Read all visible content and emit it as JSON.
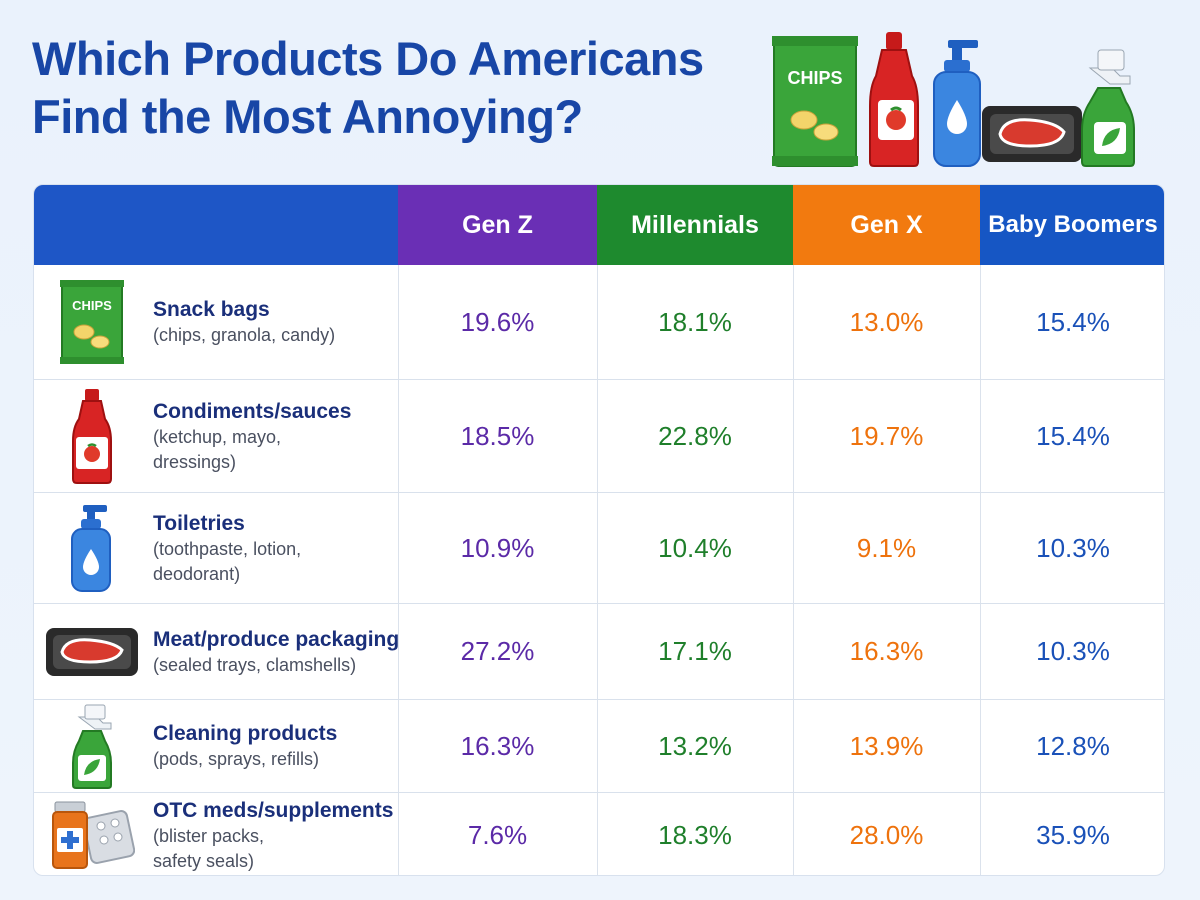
{
  "title_line1": "Which Products Do Americans",
  "title_line2": "Find the Most Annoying?",
  "chart_data": {
    "type": "table",
    "title": "Which Products Do Americans Find the Most Annoying?",
    "columns": [
      "Gen Z",
      "Millennials",
      "Gen X",
      "Baby Boomers"
    ],
    "unit": "%",
    "rows": [
      {
        "name": "Snack bags",
        "desc": "(chips, granola, candy)",
        "icon": "chips-bag-icon",
        "values": [
          "19.6%",
          "18.1%",
          "13.0%",
          "15.4%"
        ]
      },
      {
        "name": "Condiments/sauces",
        "desc": "(ketchup, mayo, dressings)",
        "icon": "ketchup-bottle-icon",
        "values": [
          "18.5%",
          "22.8%",
          "19.7%",
          "15.4%"
        ]
      },
      {
        "name": "Toiletries",
        "desc": "(toothpaste, lotion, deodorant)",
        "icon": "lotion-bottle-icon",
        "values": [
          "10.9%",
          "10.4%",
          "9.1%",
          "10.3%"
        ]
      },
      {
        "name": "Meat/produce packaging",
        "desc": "(sealed trays, clamshells)",
        "icon": "meat-tray-icon",
        "values": [
          "27.2%",
          "17.1%",
          "16.3%",
          "10.3%"
        ]
      },
      {
        "name": "Cleaning products",
        "desc": "(pods, sprays, refills)",
        "icon": "spray-bottle-icon",
        "values": [
          "16.3%",
          "13.2%",
          "13.9%",
          "12.8%"
        ]
      },
      {
        "name": "OTC meds/supplements",
        "desc": "(blister packs, safety seals)",
        "icon": "pill-bottle-icon",
        "values": [
          "7.6%",
          "18.3%",
          "28.0%",
          "35.9%"
        ]
      }
    ],
    "header_colors": {
      "Gen Z": "#6a2fb5",
      "Millennials": "#1e8a2e",
      "Gen X": "#f27a0f",
      "Baby Boomers": "#1656c4"
    }
  },
  "chips_label": "CHIPS"
}
